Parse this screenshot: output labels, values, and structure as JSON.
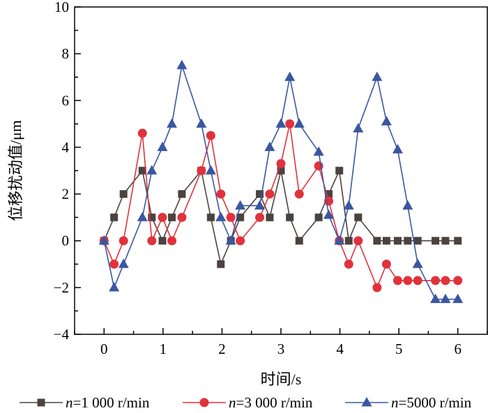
{
  "chart_data": {
    "type": "line",
    "title": "",
    "xlabel": "时间/s",
    "ylabel": "位移扰动值/μm",
    "xlim": [
      -0.5,
      6.5
    ],
    "ylim": [
      -4,
      10
    ],
    "xticks": [
      0,
      1,
      2,
      3,
      4,
      5,
      6
    ],
    "yticks": [
      -4,
      -2,
      0,
      2,
      4,
      6,
      8,
      10
    ],
    "xtick_labels": [
      "0",
      "1",
      "2",
      "3",
      "4",
      "5",
      "6"
    ],
    "ytick_labels": [
      "−4",
      "−2",
      "0",
      "2",
      "4",
      "6",
      "8",
      "10"
    ],
    "grid": false,
    "legend_position": "bottom",
    "x": [
      0,
      0.17,
      0.33,
      0.65,
      0.81,
      0.99,
      1.15,
      1.32,
      1.65,
      1.81,
      1.98,
      2.15,
      2.31,
      2.64,
      2.81,
      3.0,
      3.15,
      3.31,
      3.64,
      3.81,
      3.99,
      4.15,
      4.31,
      4.63,
      4.79,
      4.98,
      5.15,
      5.32,
      5.62,
      5.79,
      6.0
    ],
    "series": [
      {
        "name": "n=1 000 r/min",
        "italic_prefix": "n",
        "rest": "=1 000 r/min",
        "color": "#4a4340",
        "marker": "square",
        "values": [
          0,
          1,
          2,
          3,
          1,
          0,
          1,
          2,
          3,
          1,
          -1,
          0,
          1,
          2,
          1,
          3,
          1,
          0,
          1,
          2,
          3,
          0,
          1,
          0,
          0,
          0,
          0,
          0,
          0,
          0,
          0
        ]
      },
      {
        "name": "n=3 000 r/min",
        "italic_prefix": "n",
        "rest": "=3 000 r/min",
        "color": "#e0323c",
        "marker": "circle",
        "values": [
          0,
          -1,
          0,
          4.6,
          0,
          1,
          0,
          1,
          3,
          4.5,
          2,
          1,
          0,
          1,
          2,
          3.3,
          5,
          2,
          3.2,
          1.7,
          0,
          -1,
          0,
          -2,
          -1,
          -1.7,
          -1.7,
          -1.7,
          -1.7,
          -1.7,
          -1.7
        ]
      },
      {
        "name": "n=5000 r/min",
        "italic_prefix": "n",
        "rest": "=5000 r/min",
        "color": "#3a57a0",
        "marker": "triangle",
        "values": [
          0,
          -2,
          -1,
          1,
          3,
          4,
          5,
          7.5,
          5,
          3,
          1,
          0,
          1.5,
          1.5,
          4,
          5,
          7,
          5,
          3.8,
          1.1,
          0,
          1.5,
          4.8,
          7,
          5.1,
          3.9,
          1.5,
          -1,
          -2.5,
          -2.5,
          -2.5
        ]
      }
    ]
  }
}
